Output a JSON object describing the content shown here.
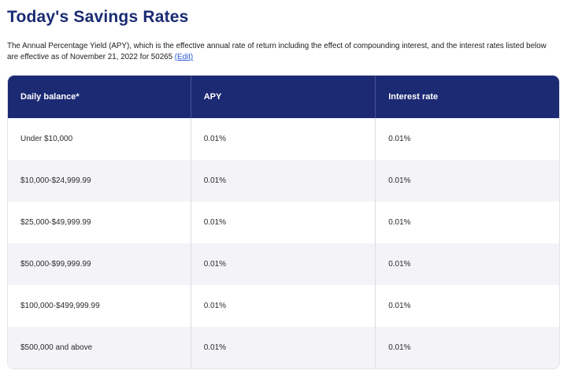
{
  "page": {
    "title": "Today's Savings Rates",
    "description": "The Annual Percentage Yield (APY), which is the effective annual rate of return including the effect of compounding interest, and the interest rates listed below are effective as of November 21, 2022 for 50265 ",
    "edit_link_label": "(Edit)"
  },
  "colors": {
    "title_navy": "#1a2b73",
    "header_bg": "#1c2a74",
    "header_text": "#ffffff",
    "link_blue": "#2a5bd7",
    "row_alt_bg": "#f4f4f8"
  },
  "table": {
    "columns": [
      "Daily balance*",
      "APY",
      "Interest rate"
    ],
    "rows": [
      [
        "Under $10,000",
        "0.01%",
        "0.01%"
      ],
      [
        "$10,000-$24,999.99",
        "0.01%",
        "0.01%"
      ],
      [
        "$25,000-$49,999.99",
        "0.01%",
        "0.01%"
      ],
      [
        "$50,000-$99,999.99",
        "0.01%",
        "0.01%"
      ],
      [
        "$100,000-$499,999.99",
        "0.01%",
        "0.01%"
      ],
      [
        "$500,000 and above",
        "0.01%",
        "0.01%"
      ]
    ]
  }
}
